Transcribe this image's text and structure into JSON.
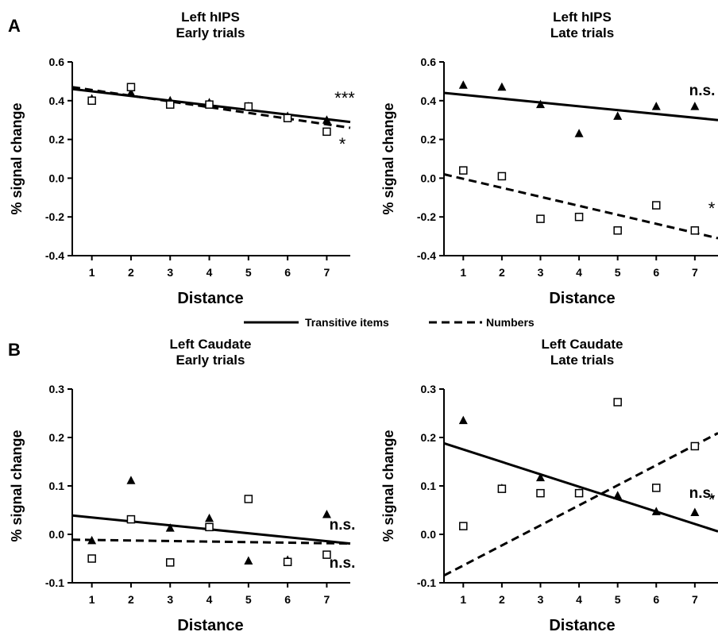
{
  "panel_labels": [
    "A",
    "B"
  ],
  "legend": {
    "solid": "Transitive items",
    "dashed": "Numbers"
  },
  "chart_data": [
    {
      "type": "scatter",
      "title": [
        "Left hIPS",
        "Early trials"
      ],
      "xlabel": "Distance",
      "ylabel": "% signal change",
      "xlim": [
        0.5,
        7.6
      ],
      "ylim": [
        -0.4,
        0.6
      ],
      "xticks": [
        "1",
        "2",
        "3",
        "4",
        "5",
        "6",
        "7"
      ],
      "yticks": [
        "0.6",
        "0.4",
        "0.2",
        "0.0",
        "-0.2",
        "-0.4"
      ],
      "series": [
        {
          "name": "Transitive items",
          "marker": "triangle",
          "line": "solid",
          "x": [
            1,
            2,
            3,
            4,
            5,
            6,
            7
          ],
          "y": [
            0.41,
            0.44,
            0.4,
            0.39,
            0.37,
            0.32,
            0.3
          ],
          "fit_y": [
            0.46,
            0.29
          ],
          "significance": "***"
        },
        {
          "name": "Numbers",
          "marker": "square",
          "line": "dashed",
          "x": [
            1,
            2,
            3,
            4,
            5,
            6,
            7
          ],
          "y": [
            0.4,
            0.47,
            0.38,
            0.38,
            0.37,
            0.31,
            0.24
          ],
          "fit_y": [
            0.47,
            0.26
          ],
          "significance": "*"
        }
      ]
    },
    {
      "type": "scatter",
      "title": [
        "Left hIPS",
        "Late trials"
      ],
      "xlabel": "Distance",
      "ylabel": "% signal change",
      "xlim": [
        0.5,
        7.6
      ],
      "ylim": [
        -0.4,
        0.6
      ],
      "xticks": [
        "1",
        "2",
        "3",
        "4",
        "5",
        "6",
        "7"
      ],
      "yticks": [
        "0.6",
        "0.4",
        "0.2",
        "0.0",
        "-0.2",
        "-0.4"
      ],
      "series": [
        {
          "name": "Transitive items",
          "marker": "triangle",
          "line": "solid",
          "x": [
            1,
            2,
            3,
            4,
            5,
            6,
            7
          ],
          "y": [
            0.48,
            0.47,
            0.38,
            0.23,
            0.32,
            0.37,
            0.37
          ],
          "fit_y": [
            0.44,
            0.3
          ],
          "significance": "n.s."
        },
        {
          "name": "Numbers",
          "marker": "square",
          "line": "dashed",
          "x": [
            1,
            2,
            3,
            4,
            5,
            6,
            7
          ],
          "y": [
            0.04,
            0.01,
            -0.21,
            -0.2,
            -0.27,
            -0.14,
            -0.27
          ],
          "fit_y": [
            0.02,
            -0.31
          ],
          "significance": "*"
        }
      ]
    },
    {
      "type": "scatter",
      "title": [
        "Left Caudate",
        "Early trials"
      ],
      "xlabel": "Distance",
      "ylabel": "% signal change",
      "xlim": [
        0.5,
        7.6
      ],
      "ylim": [
        -0.1,
        0.3
      ],
      "xticks": [
        "1",
        "2",
        "3",
        "4",
        "5",
        "6",
        "7"
      ],
      "yticks": [
        "0.3",
        "0.2",
        "0.1",
        "0.0",
        "-0.1"
      ],
      "series": [
        {
          "name": "Transitive items",
          "marker": "triangle",
          "line": "solid",
          "x": [
            1,
            2,
            3,
            4,
            5,
            6,
            7
          ],
          "y": [
            -0.013,
            0.111,
            0.013,
            0.033,
            -0.055,
            -0.053,
            0.041
          ],
          "fit_y": [
            0.039,
            -0.019
          ],
          "significance": "n.s."
        },
        {
          "name": "Numbers",
          "marker": "square",
          "line": "dashed",
          "x": [
            1,
            2,
            3,
            4,
            5,
            6,
            7
          ],
          "y": [
            -0.05,
            0.031,
            -0.058,
            0.015,
            0.073,
            -0.057,
            -0.042
          ],
          "fit_y": [
            -0.011,
            -0.019
          ],
          "significance": "n.s."
        }
      ]
    },
    {
      "type": "scatter",
      "title": [
        "Left Caudate",
        "Late trials"
      ],
      "xlabel": "Distance",
      "ylabel": "% signal change",
      "xlim": [
        0.5,
        7.6
      ],
      "ylim": [
        -0.1,
        0.3
      ],
      "xticks": [
        "1",
        "2",
        "3",
        "4",
        "5",
        "6",
        "7"
      ],
      "yticks": [
        "0.3",
        "0.2",
        "0.1",
        "0.0",
        "-0.1"
      ],
      "series": [
        {
          "name": "Transitive items",
          "marker": "triangle",
          "line": "solid",
          "x": [
            1,
            2,
            3,
            4,
            5,
            6,
            7
          ],
          "y": [
            0.235,
            0.095,
            0.117,
            0.085,
            0.08,
            0.047,
            0.045
          ],
          "fit_y": [
            0.188,
            0.006
          ],
          "significance": "*"
        },
        {
          "name": "Numbers",
          "marker": "square",
          "line": "dashed",
          "x": [
            1,
            2,
            3,
            4,
            5,
            6,
            7
          ],
          "y": [
            0.017,
            0.094,
            0.085,
            0.085,
            0.273,
            0.096,
            0.182
          ],
          "fit_y": [
            -0.085,
            0.209
          ],
          "significance": "n.s."
        }
      ]
    }
  ]
}
